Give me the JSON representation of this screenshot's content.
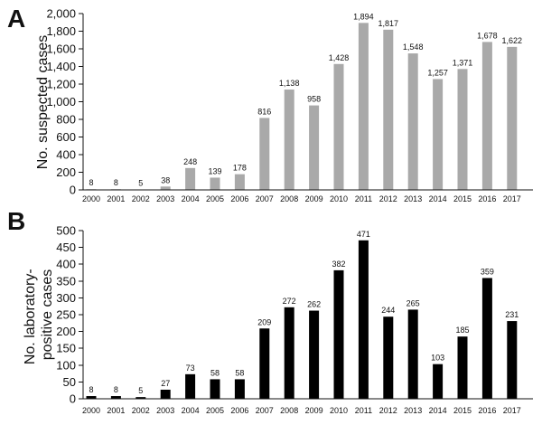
{
  "chart_data": [
    {
      "type": "bar",
      "panel_label": "A",
      "ylabel": "No. suspected cases",
      "categories": [
        "2000",
        "2001",
        "2002",
        "2003",
        "2004",
        "2005",
        "2006",
        "2007",
        "2008",
        "2009",
        "2010",
        "2011",
        "2012",
        "2013",
        "2014",
        "2015",
        "2016",
        "2017"
      ],
      "values": [
        8,
        8,
        5,
        38,
        248,
        139,
        178,
        816,
        1138,
        958,
        1428,
        1894,
        1817,
        1548,
        1257,
        1371,
        1678,
        1622
      ],
      "value_labels": [
        "8",
        "8",
        "5",
        "38",
        "248",
        "139",
        "178",
        "816",
        "1,138",
        "958",
        "1,428",
        "1,894",
        "1,817",
        "1,548",
        "1,257",
        "1,371",
        "1,678",
        "1,622"
      ],
      "ylim": [
        0,
        2000
      ],
      "yticks": [
        0,
        200,
        400,
        600,
        800,
        1000,
        1200,
        1400,
        1600,
        1800,
        2000
      ],
      "ytick_labels": [
        "0",
        "200",
        "400",
        "600",
        "800",
        "1,000",
        "1,200",
        "1,400",
        "1,600",
        "1,800",
        "2,000"
      ],
      "bar_color": "#a9a9a9",
      "grid": false,
      "legend": false
    },
    {
      "type": "bar",
      "panel_label": "B",
      "ylabel_lines": [
        "No. laboratory-",
        "positive cases"
      ],
      "categories": [
        "2000",
        "2001",
        "2002",
        "2003",
        "2004",
        "2005",
        "2006",
        "2007",
        "2008",
        "2009",
        "2010",
        "2011",
        "2012",
        "2013",
        "2014",
        "2015",
        "2016",
        "2017"
      ],
      "values": [
        8,
        8,
        5,
        27,
        73,
        58,
        58,
        209,
        272,
        262,
        382,
        471,
        244,
        265,
        103,
        185,
        359,
        231
      ],
      "value_labels": [
        "8",
        "8",
        "5",
        "27",
        "73",
        "58",
        "58",
        "209",
        "272",
        "262",
        "382",
        "471",
        "244",
        "265",
        "103",
        "185",
        "359",
        "231"
      ],
      "ylim": [
        0,
        500
      ],
      "yticks": [
        0,
        50,
        100,
        150,
        200,
        250,
        300,
        350,
        400,
        450,
        500
      ],
      "ytick_labels": [
        "0",
        "50",
        "100",
        "150",
        "200",
        "250",
        "300",
        "350",
        "400",
        "450",
        "500"
      ],
      "bar_color": "#000000",
      "grid": false,
      "legend": false
    }
  ]
}
